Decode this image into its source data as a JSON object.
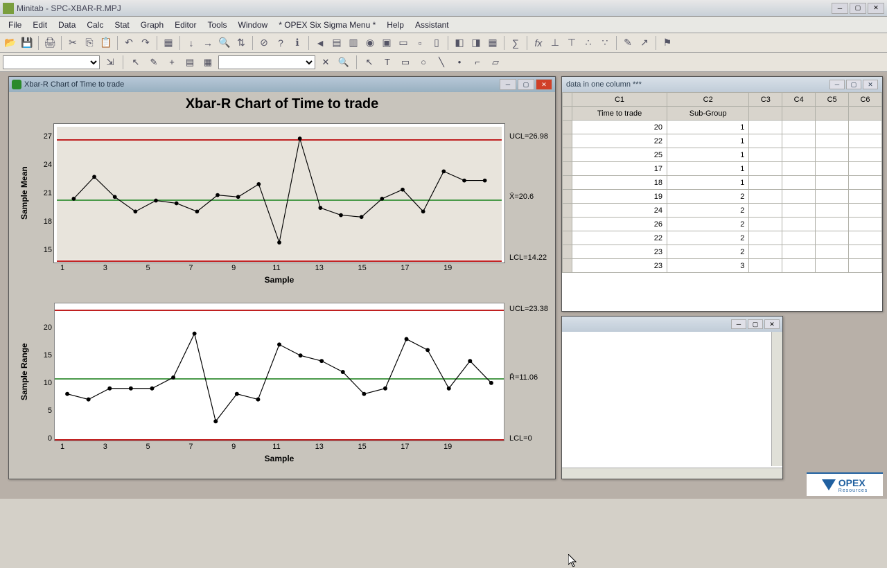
{
  "app": {
    "title": "Minitab - SPC-XBAR-R.MPJ"
  },
  "menu": [
    "File",
    "Edit",
    "Data",
    "Calc",
    "Stat",
    "Graph",
    "Editor",
    "Tools",
    "Window",
    "* OPEX Six Sigma Menu *",
    "Help",
    "Assistant"
  ],
  "chart_window": {
    "title": "Xbar-R Chart of Time to trade",
    "main_title": "Xbar-R Chart of Time to trade"
  },
  "xbar": {
    "type": "line",
    "ylabel": "Sample Mean",
    "xlabel": "Sample",
    "ylim": [
      14,
      28
    ],
    "yticks": [
      15,
      18,
      21,
      24,
      27
    ],
    "xticks": [
      1,
      3,
      5,
      7,
      9,
      11,
      13,
      15,
      17,
      19
    ],
    "ucl": 26.98,
    "cl": 20.6,
    "lcl": 14.22,
    "ucl_label": "UCL=26.98",
    "cl_label": "X̄=20.6",
    "lcl_label": "LCL=14.22",
    "values": [
      20.4,
      22.8,
      20.6,
      19.0,
      20.2,
      19.9,
      19.0,
      20.8,
      20.6,
      22.0,
      15.6,
      27.0,
      19.4,
      18.6,
      18.4,
      20.4,
      21.4,
      19.0,
      23.4,
      22.4,
      22.4
    ],
    "line_color": "#000000",
    "ucl_color": "#c02020",
    "cl_color": "#4a9a4a",
    "bg": "#e8e4dc",
    "marker_size": 3
  },
  "rchart": {
    "type": "line",
    "ylabel": "Sample Range",
    "xlabel": "Sample",
    "ylim": [
      0,
      24
    ],
    "yticks": [
      0,
      5,
      10,
      15,
      20
    ],
    "xticks": [
      1,
      3,
      5,
      7,
      9,
      11,
      13,
      15,
      17,
      19
    ],
    "ucl": 23.38,
    "cl": 11.06,
    "lcl": 0,
    "ucl_label": "UCL=23.38",
    "cl_label": "R̄=11.06",
    "lcl_label": "LCL=0",
    "values": [
      8,
      7,
      9,
      9,
      9,
      11,
      19,
      3,
      8,
      7,
      17,
      15,
      14,
      12,
      8,
      9,
      18,
      16,
      9,
      14,
      10
    ],
    "line_color": "#000000",
    "ucl_color": "#c02020",
    "cl_color": "#4a9a4a",
    "bg": "#ffffff",
    "marker_size": 3
  },
  "data_window": {
    "title": "data in one column ***",
    "columns": [
      "C1",
      "C2",
      "C3",
      "C4",
      "C5",
      "C6"
    ],
    "names": [
      "Time to trade",
      "Sub-Group",
      "",
      "",
      "",
      ""
    ],
    "rows": [
      [
        20,
        1
      ],
      [
        22,
        1
      ],
      [
        25,
        1
      ],
      [
        17,
        1
      ],
      [
        18,
        1
      ],
      [
        19,
        2
      ],
      [
        24,
        2
      ],
      [
        26,
        2
      ],
      [
        22,
        2
      ],
      [
        23,
        2
      ],
      [
        23,
        3
      ]
    ]
  },
  "opex": {
    "brand": "OPEX",
    "sub": "Resources"
  }
}
